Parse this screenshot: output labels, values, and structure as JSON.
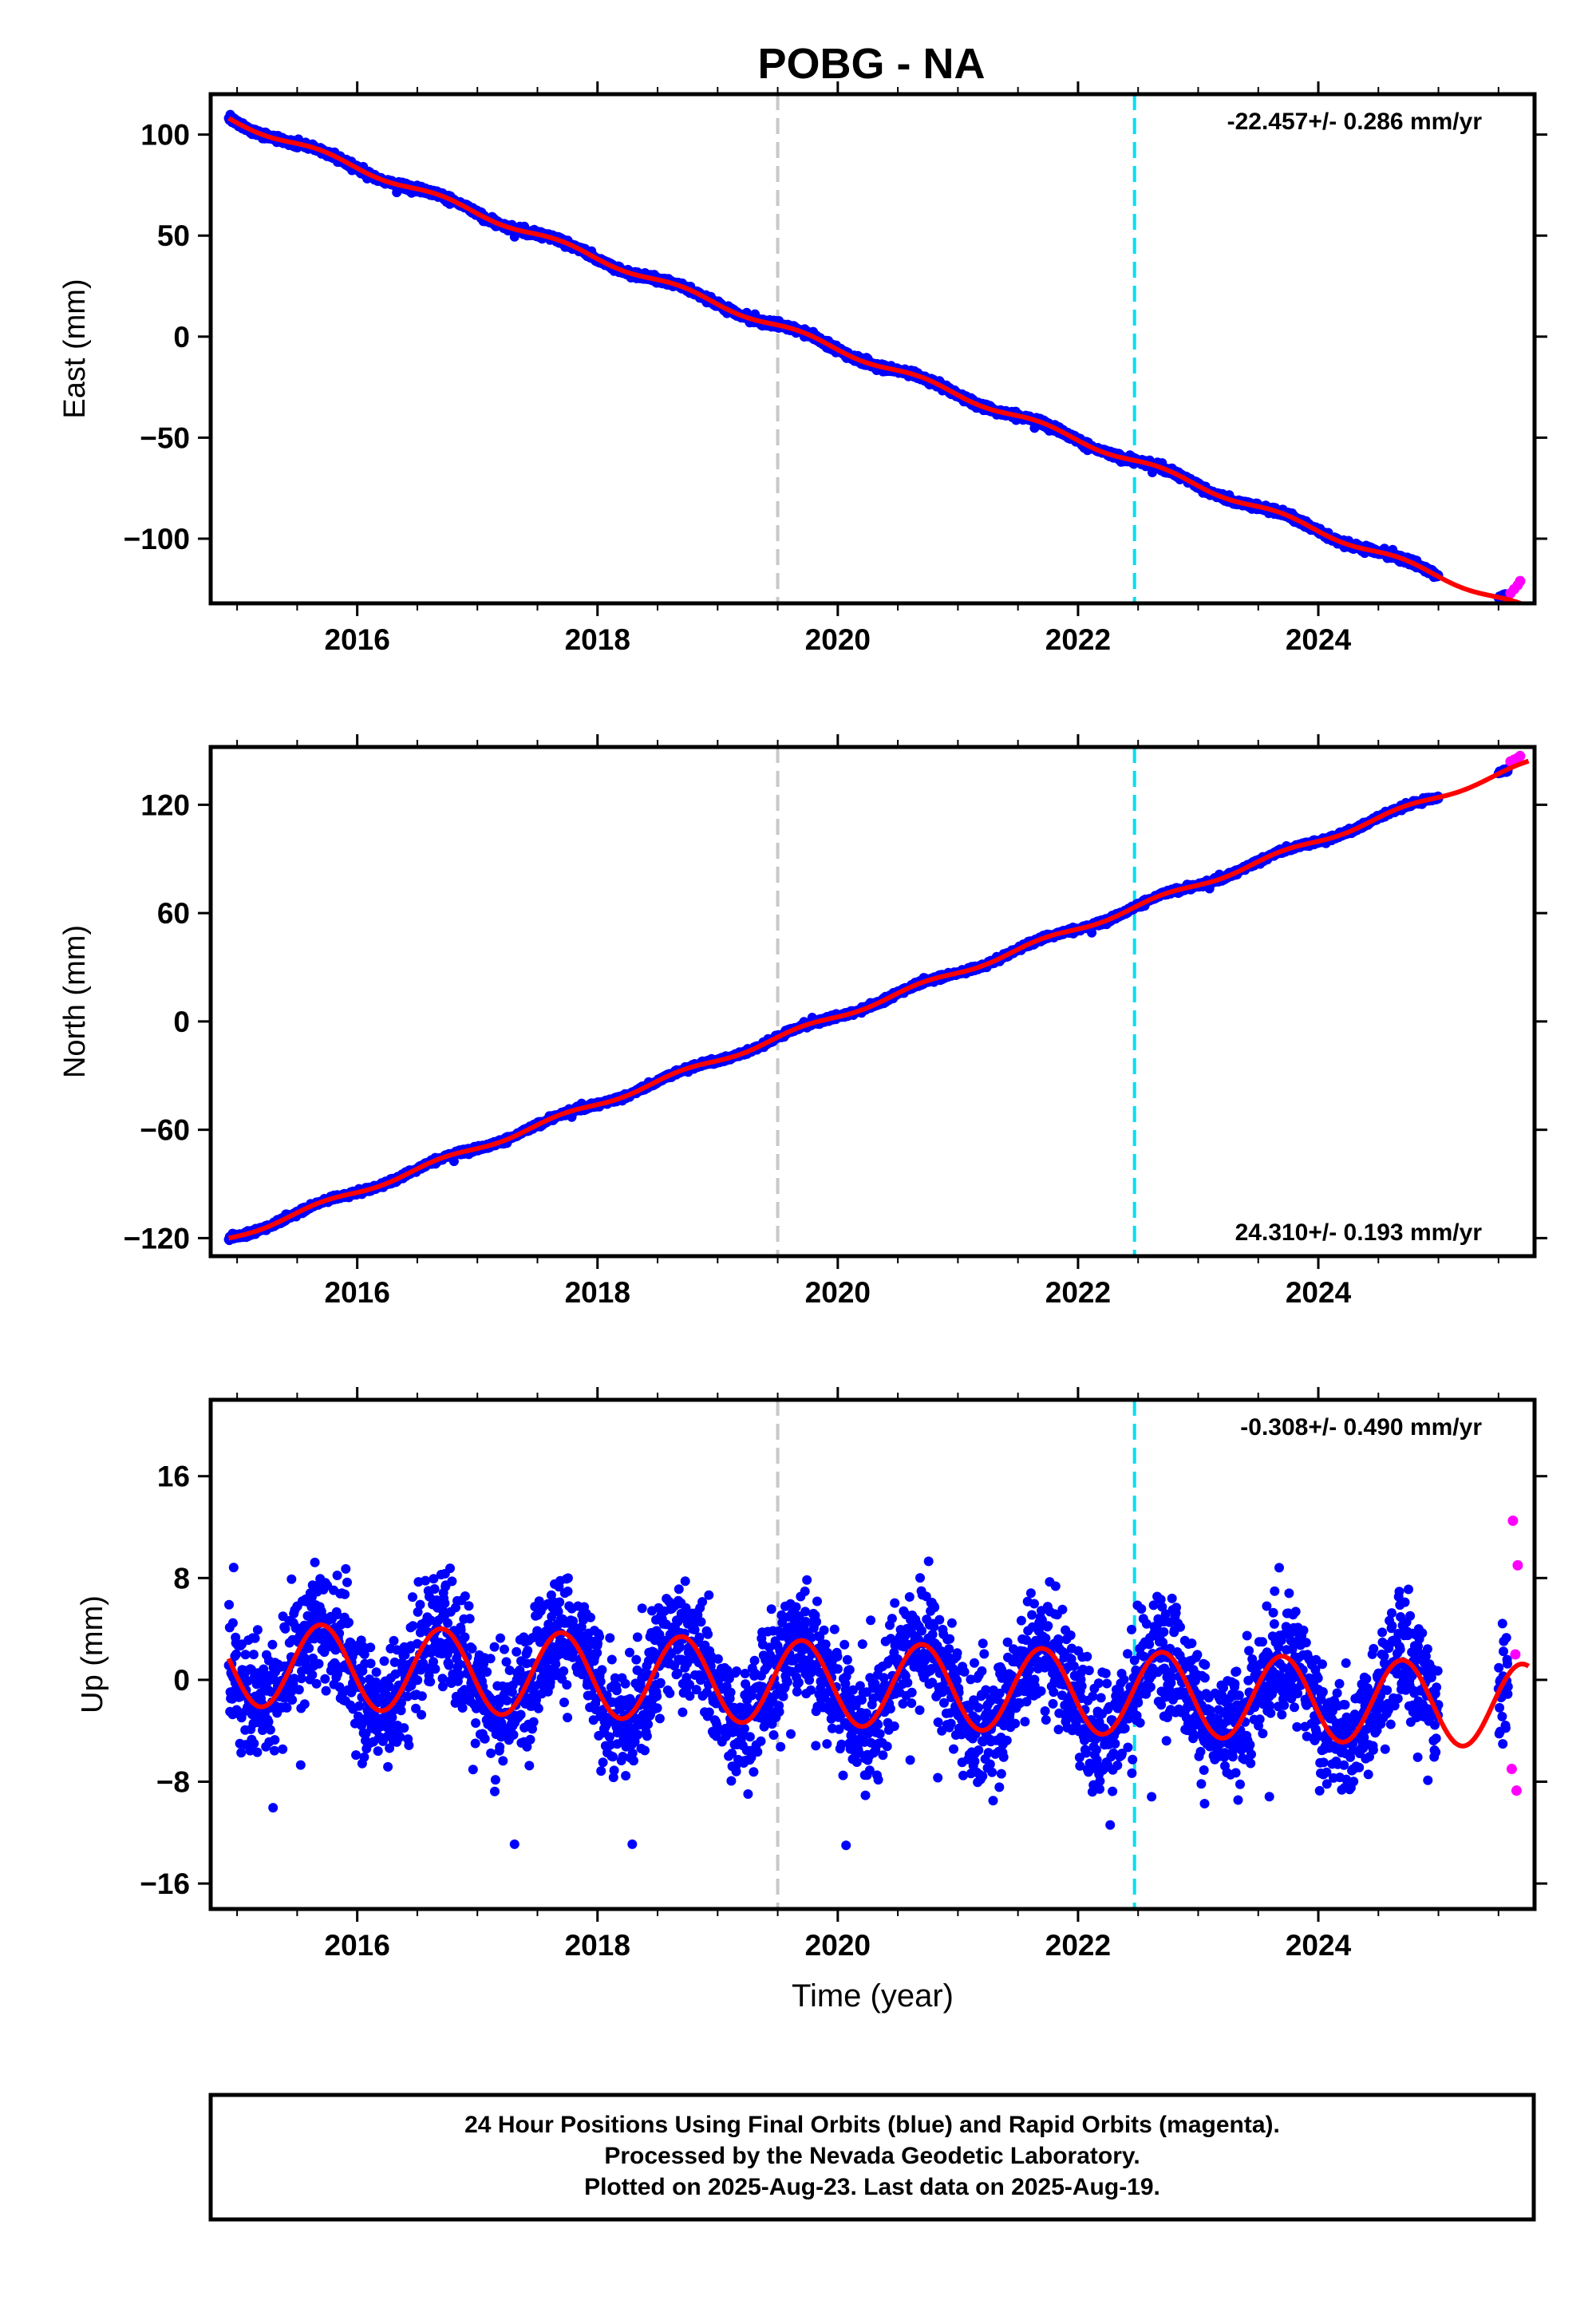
{
  "title": "POBG - NA",
  "footer": [
    "24 Hour Positions Using Final Orbits (blue) and Rapid Orbits (magenta).",
    "Processed by the Nevada Geodetic Laboratory.",
    "Plotted on 2025-Aug-23. Last data on 2025-Aug-19."
  ],
  "colors": {
    "final_orbits": "#0000ff",
    "rapid_orbits": "#ff00ff",
    "model_fit": "#ff0000",
    "equipment_change": "#c8c8c8",
    "earthquake_event": "#00e0f0"
  },
  "chart_data": [
    {
      "type": "scatter",
      "name": "east",
      "ylabel": "East (mm)",
      "xlabel": "",
      "xlim": [
        2014.78,
        2025.8
      ],
      "ylim": [
        -132,
        120
      ],
      "xticks": [
        2016,
        2018,
        2020,
        2022,
        2024
      ],
      "yticks": [
        100,
        50,
        0,
        -50,
        -100
      ],
      "annotation": "-22.457+/- 0.286 mm/yr",
      "annotation_position": "top-right",
      "vlines": [
        {
          "x": 2019.5,
          "style": "gray-dashed"
        },
        {
          "x": 2022.47,
          "style": "cyan-dashed"
        }
      ],
      "trend": {
        "rate": -22.457,
        "rate_uncertainty": 0.286,
        "x0": 2020.0,
        "offset_at_x0": -6,
        "annual_amplitude": 1.6,
        "noise": 1.2,
        "data_until": 2025.0
      },
      "rapid_points": [
        {
          "x": 2025.6,
          "y": -127
        },
        {
          "x": 2025.63,
          "y": -125
        },
        {
          "x": 2025.66,
          "y": -123
        },
        {
          "x": 2025.68,
          "y": -121
        }
      ]
    },
    {
      "type": "scatter",
      "name": "north",
      "ylabel": "North (mm)",
      "xlabel": "",
      "xlim": [
        2014.78,
        2025.8
      ],
      "ylim": [
        -130,
        152
      ],
      "xticks": [
        2016,
        2018,
        2020,
        2022,
        2024
      ],
      "yticks": [
        120,
        60,
        0,
        -60,
        -120
      ],
      "annotation": "24.310+/- 0.193 mm/yr",
      "annotation_position": "bottom-right",
      "vlines": [
        {
          "x": 2019.5,
          "style": "gray-dashed"
        },
        {
          "x": 2022.47,
          "style": "cyan-dashed"
        }
      ],
      "trend": {
        "rate": 24.31,
        "rate_uncertainty": 0.193,
        "x0": 2020.0,
        "offset_at_x0": 3,
        "annual_amplitude": 1.5,
        "noise": 1.0,
        "data_until": 2025.0
      },
      "rapid_points": [
        {
          "x": 2025.6,
          "y": 144
        },
        {
          "x": 2025.63,
          "y": 145
        },
        {
          "x": 2025.66,
          "y": 146
        },
        {
          "x": 2025.68,
          "y": 147
        }
      ]
    },
    {
      "type": "scatter",
      "name": "up",
      "ylabel": "Up (mm)",
      "xlabel": "Time (year)",
      "xlim": [
        2014.78,
        2025.8
      ],
      "ylim": [
        -18,
        22
      ],
      "xticks": [
        2016,
        2018,
        2020,
        2022,
        2024
      ],
      "yticks": [
        16,
        8,
        0,
        -8,
        -16
      ],
      "annotation": "-0.308+/- 0.490 mm/yr",
      "annotation_position": "top-right",
      "vlines": [
        {
          "x": 2019.5,
          "style": "gray-dashed"
        },
        {
          "x": 2022.47,
          "style": "cyan-dashed"
        }
      ],
      "trend": {
        "rate": -0.308,
        "rate_uncertainty": 0.49,
        "x0": 2020.0,
        "offset_at_x0": -0.3,
        "annual_amplitude": 3.3,
        "noise": 3.2,
        "data_until": 2025.0
      },
      "rapid_points": [
        {
          "x": 2025.62,
          "y": 12.5
        },
        {
          "x": 2025.66,
          "y": 9
        },
        {
          "x": 2025.64,
          "y": 2
        },
        {
          "x": 2025.61,
          "y": -7
        },
        {
          "x": 2025.65,
          "y": -8.7
        }
      ]
    }
  ]
}
